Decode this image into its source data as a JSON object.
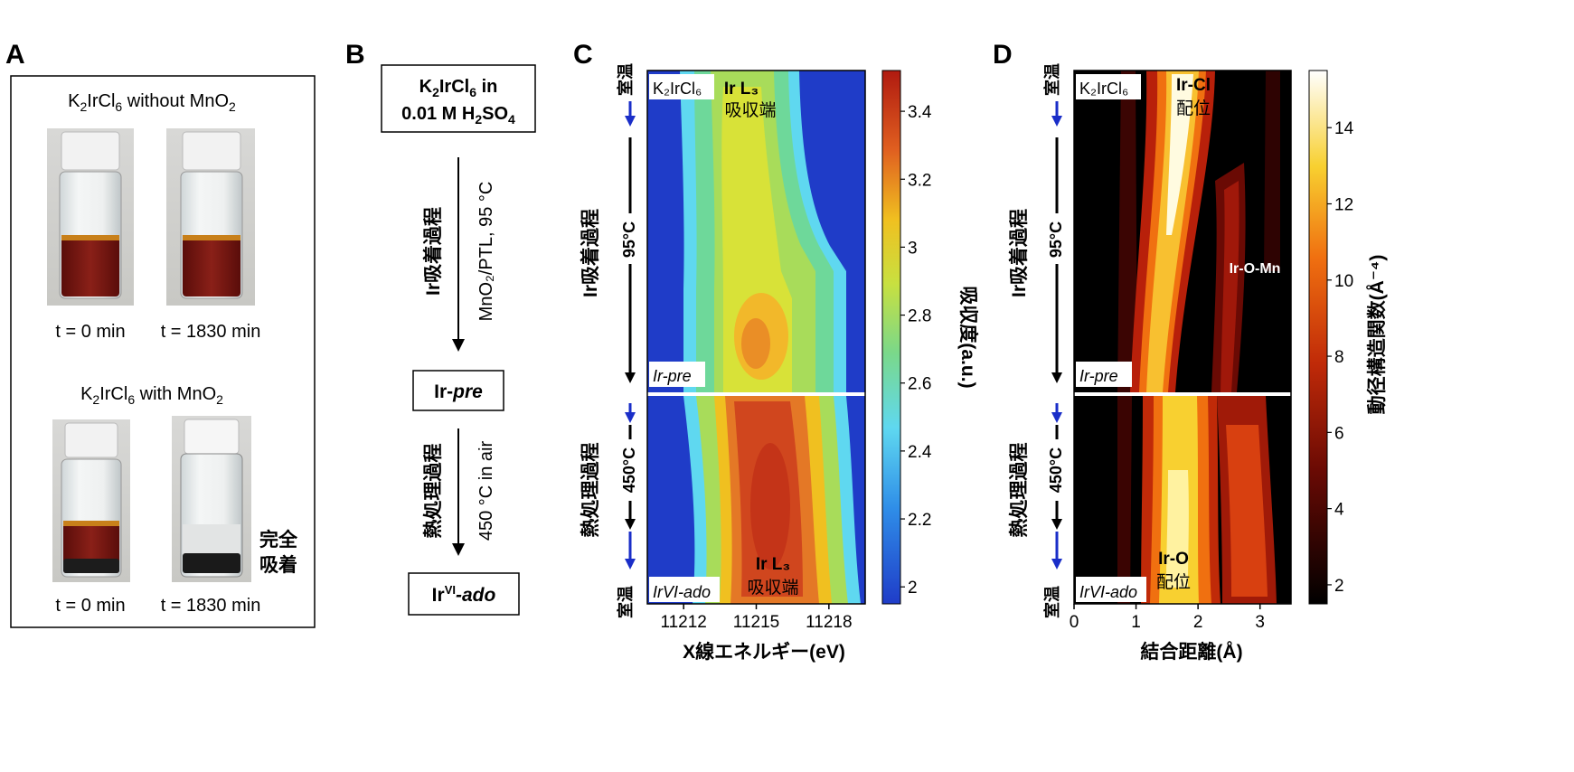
{
  "panels": {
    "a": {
      "letter": "A",
      "top_title": {
        "prefix": "K",
        "sub1": "2",
        "mid": "IrCl",
        "sub2": "6",
        "suffix": " without MnO",
        "sub3": "2"
      },
      "bottom_title": {
        "prefix": "K",
        "sub1": "2",
        "mid": "IrCl",
        "sub2": "6",
        "suffix": " with MnO",
        "sub3": "2"
      },
      "vial_labels": [
        "t = 0 min",
        "t = 1830 min",
        "t = 0 min",
        "t = 1830 min"
      ],
      "adsorbed_note": [
        "完全",
        "吸着"
      ]
    },
    "b": {
      "letter": "B",
      "start_box": {
        "line1_prefix": "K",
        "line1_sub1": "2",
        "line1_mid": "IrCl",
        "line1_sub2": "6",
        "line1_suffix": " in",
        "line2_prefix": "0.01 M H",
        "line2_sub1": "2",
        "line2_mid": "SO",
        "line2_sub2": "4"
      },
      "step1_label": "Ir吸着過程",
      "step1_condition": "MnO₂/PTL, 95 °C",
      "mid_box": {
        "prefix": "Ir-",
        "italic": "pre"
      },
      "step2_label": "熱処理過程",
      "step2_condition": "450 °C in air",
      "end_box": {
        "prefix": "Ir",
        "sup": "VI",
        "italic": "-ado"
      }
    },
    "c": {
      "letter": "C",
      "side_labels": {
        "top_temp": "室温",
        "process1": "Ir吸着過程",
        "mid1": "95°C",
        "process2": "熱処理過程",
        "mid2": "450°C",
        "bottom_temp": "室温"
      },
      "corner_labels": {
        "top": "K₂IrCl₆",
        "mid": "Ir-pre",
        "bottom": "IrVI-ado"
      },
      "annotation_top": [
        "Ir L₃",
        "吸収端"
      ],
      "annotation_bottom": [
        "Ir L₃",
        "吸収端"
      ],
      "colorbar_label": "吸収度(a.u.)"
    },
    "d": {
      "letter": "D",
      "side_labels": {
        "top_temp": "室温",
        "process1": "Ir吸着過程",
        "mid1": "95°C",
        "process2": "熱処理過程",
        "mid2": "450°C",
        "bottom_temp": "室温"
      },
      "corner_labels": {
        "top": "K₂IrCl₆",
        "mid": "Ir-pre",
        "bottom": "IrVI-ado"
      },
      "annotation_top": [
        "Ir-Cl",
        "配位"
      ],
      "annotation_mid": "Ir-O-Mn",
      "annotation_bottom": [
        "Ir-O",
        "配位"
      ],
      "colorbar_label": "動径構造関数(Å⁻⁴)"
    }
  },
  "chart_data": [
    {
      "type": "heatmap",
      "panel": "C",
      "xlabel": "X線エネルギー(eV)",
      "x_ticks": [
        11212,
        11215,
        11218
      ],
      "xlim": [
        11210.5,
        11219.5
      ],
      "colorbar_ticks": [
        2,
        2.2,
        2.4,
        2.6,
        2.8,
        3,
        3.2,
        3.4
      ],
      "colorbar_range": [
        1.95,
        3.52
      ],
      "colormap": "jet"
    },
    {
      "type": "heatmap",
      "panel": "D",
      "xlabel": "結合距離(Å)",
      "x_ticks": [
        0,
        1,
        2,
        3
      ],
      "xlim": [
        0,
        3.5
      ],
      "colorbar_ticks": [
        2,
        4,
        6,
        8,
        10,
        12,
        14
      ],
      "colorbar_range": [
        1.5,
        15.5
      ],
      "colormap": "hot"
    }
  ],
  "colors": {
    "arrow_blue": "#1a2ec8",
    "jet_low": "#1f3cc8",
    "liquid": "#7a1a14",
    "cap": "#f2f2f2"
  }
}
